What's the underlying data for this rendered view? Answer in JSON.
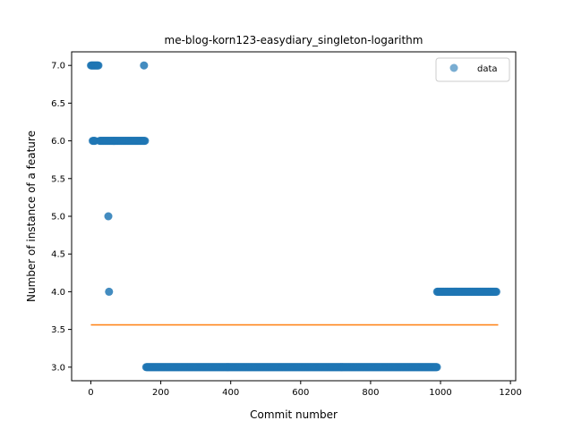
{
  "chart_data": {
    "type": "scatter",
    "title": "me-blog-korn123-easydiary_singleton-logarithm",
    "xlabel": "Commit number",
    "ylabel": "Number of instance of a feature",
    "xlim": [
      -55,
      1215
    ],
    "ylim": [
      2.82,
      7.18
    ],
    "xticks": [
      0,
      200,
      400,
      600,
      800,
      1000,
      1200
    ],
    "yticks": [
      3.0,
      3.5,
      4.0,
      4.5,
      5.0,
      5.5,
      6.0,
      6.5,
      7.0
    ],
    "grid": false,
    "legend_position": "top-right",
    "series": [
      {
        "name": "data",
        "kind": "scatter",
        "color": "#1f77b4",
        "runs": [
          {
            "x_start": 0,
            "x_end": 22,
            "y": 7.0
          },
          {
            "x_start": 152,
            "x_end": 152,
            "y": 7.0
          },
          {
            "x_start": 5,
            "x_end": 12,
            "y": 6.0
          },
          {
            "x_start": 25,
            "x_end": 155,
            "y": 6.0
          },
          {
            "x_start": 50,
            "x_end": 50,
            "y": 5.0
          },
          {
            "x_start": 52,
            "x_end": 52,
            "y": 4.0
          },
          {
            "x_start": 158,
            "x_end": 990,
            "y": 3.0
          },
          {
            "x_start": 990,
            "x_end": 1160,
            "y": 4.0
          }
        ]
      },
      {
        "kind": "line",
        "color": "#ff7f0e",
        "x": [
          0,
          1165
        ],
        "y": [
          3.56,
          3.56
        ]
      }
    ]
  }
}
